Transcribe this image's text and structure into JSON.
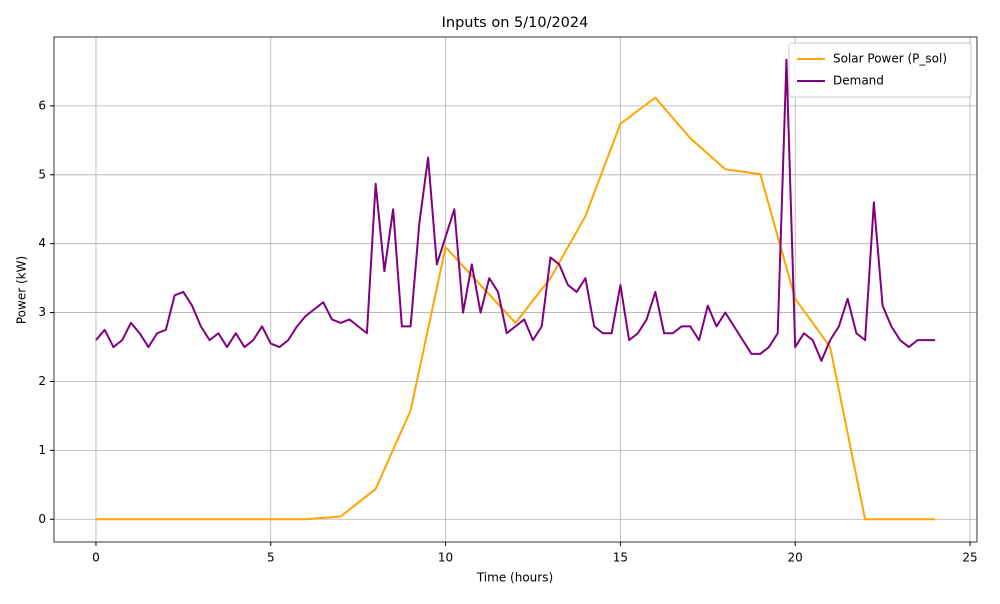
{
  "chart_data": {
    "type": "line",
    "title": "Inputs on 5/10/2024",
    "xlabel": "Time (hours)",
    "ylabel": "Power (kW)",
    "xlim": [
      -1.2,
      25.2
    ],
    "ylim": [
      -0.33,
      7.0
    ],
    "xticks": [
      0,
      5,
      10,
      15,
      20,
      25
    ],
    "yticks": [
      0,
      1,
      2,
      3,
      4,
      5,
      6
    ],
    "grid": true,
    "legend": "upper right",
    "series": [
      {
        "name": "Solar Power (P_sol)",
        "color": "#ffa500",
        "x": [
          0,
          1,
          2,
          3,
          4,
          5,
          6,
          7,
          8,
          9,
          10,
          11,
          12,
          13,
          14,
          15,
          16,
          17,
          18,
          19,
          20,
          21,
          22,
          23,
          24
        ],
        "values": [
          0,
          0,
          0,
          0,
          0,
          0,
          0,
          0.04,
          0.44,
          1.58,
          3.95,
          3.4,
          2.85,
          3.5,
          4.4,
          5.74,
          6.12,
          5.53,
          5.08,
          5.01,
          3.2,
          2.5,
          0,
          0,
          0
        ]
      },
      {
        "name": "Demand",
        "color": "#800080",
        "x": [
          0,
          0.25,
          0.5,
          0.75,
          1,
          1.25,
          1.5,
          1.75,
          2,
          2.25,
          2.5,
          2.75,
          3,
          3.25,
          3.5,
          3.75,
          4,
          4.25,
          4.5,
          4.75,
          5,
          5.25,
          5.5,
          5.75,
          6,
          6.25,
          6.5,
          6.75,
          7,
          7.25,
          7.5,
          7.75,
          8,
          8.25,
          8.5,
          8.75,
          9,
          9.25,
          9.5,
          9.75,
          10,
          10.25,
          10.5,
          10.75,
          11,
          11.25,
          11.5,
          11.75,
          12,
          12.25,
          12.5,
          12.75,
          13,
          13.25,
          13.5,
          13.75,
          14,
          14.25,
          14.5,
          14.75,
          15,
          15.25,
          15.5,
          15.75,
          16,
          16.25,
          16.5,
          16.75,
          17,
          17.25,
          17.5,
          17.75,
          18,
          18.25,
          18.5,
          18.75,
          19,
          19.25,
          19.5,
          19.75,
          20,
          20.25,
          20.5,
          20.75,
          21,
          21.25,
          21.5,
          21.75,
          22,
          22.25,
          22.5,
          22.75,
          23,
          23.25,
          23.5,
          23.75,
          24
        ],
        "values": [
          2.6,
          2.75,
          2.5,
          2.6,
          2.85,
          2.7,
          2.5,
          2.7,
          2.75,
          3.25,
          3.3,
          3.1,
          2.8,
          2.6,
          2.7,
          2.5,
          2.7,
          2.5,
          2.6,
          2.8,
          2.55,
          2.5,
          2.6,
          2.8,
          2.95,
          3.05,
          3.15,
          2.9,
          2.85,
          2.9,
          2.8,
          2.7,
          4.87,
          3.6,
          4.5,
          2.8,
          2.8,
          4.3,
          5.25,
          3.7,
          4.1,
          4.5,
          3.0,
          3.7,
          3.0,
          3.5,
          3.3,
          2.7,
          2.8,
          2.9,
          2.6,
          2.8,
          3.8,
          3.7,
          3.4,
          3.3,
          3.5,
          2.8,
          2.7,
          2.7,
          3.4,
          2.6,
          2.7,
          2.9,
          3.3,
          2.7,
          2.7,
          2.8,
          2.8,
          2.6,
          3.1,
          2.8,
          3.0,
          2.8,
          2.6,
          2.4,
          2.4,
          2.5,
          2.7,
          6.67,
          2.5,
          2.7,
          2.6,
          2.3,
          2.6,
          2.8,
          3.2,
          2.7,
          2.6,
          4.6,
          3.1,
          2.8,
          2.6,
          2.5,
          2.6,
          2.6,
          2.6
        ]
      }
    ]
  }
}
